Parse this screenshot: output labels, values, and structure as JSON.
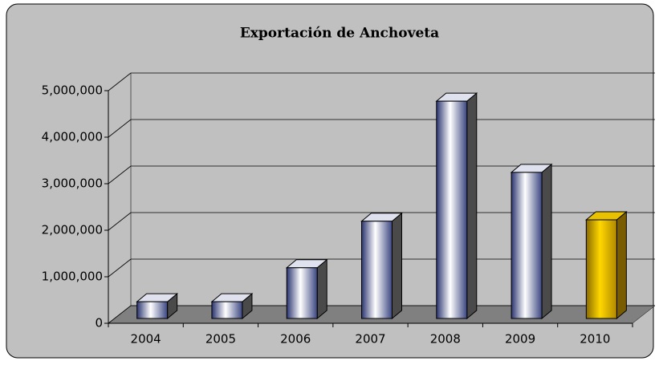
{
  "chart_data": {
    "type": "bar3d",
    "title": "Exportación de Anchoveta",
    "categories": [
      "2004",
      "2005",
      "2006",
      "2007",
      "2008",
      "2009",
      "2010"
    ],
    "values": [
      360000,
      360000,
      1090000,
      2090000,
      4670000,
      3140000,
      2120000
    ],
    "colors": [
      "silver",
      "silver",
      "silver",
      "silver",
      "silver",
      "silver",
      "gold"
    ],
    "ylim": [
      0,
      5000000
    ],
    "yticks": [
      0,
      {
        "value": 1000000,
        "label": "1,000,000"
      },
      {
        "value": 2000000,
        "label": "2,000,000"
      },
      {
        "value": 3000000,
        "label": "3,000,000"
      },
      {
        "value": 4000000,
        "label": "4,000,000"
      },
      {
        "value": 5000000,
        "label": "5,000,000"
      }
    ],
    "grid": true
  }
}
